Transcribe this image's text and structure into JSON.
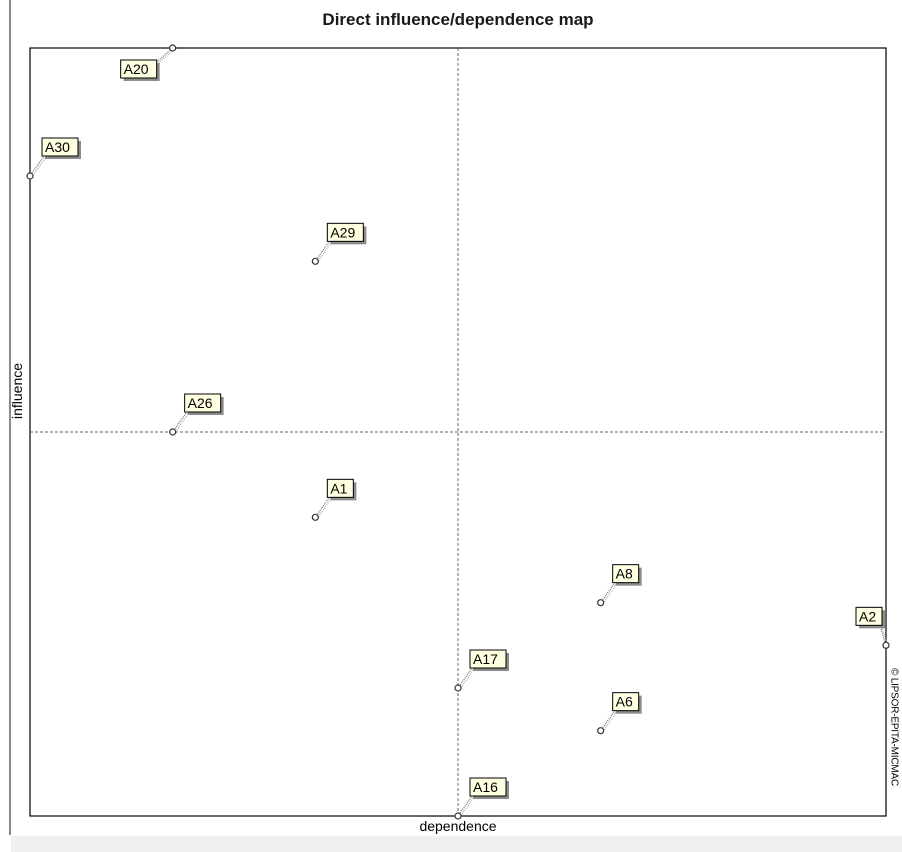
{
  "chart_data": {
    "type": "scatter",
    "title": "Direct influence/dependence map",
    "xlabel": "dependence",
    "ylabel": "influence",
    "xlim": [
      0,
      6
    ],
    "ylim": [
      0,
      9
    ],
    "x_divider": 3,
    "y_divider": 4.5,
    "grid": false,
    "points": [
      {
        "label": "A20",
        "x": 1,
        "y": 9
      },
      {
        "label": "A30",
        "x": 0,
        "y": 7.5
      },
      {
        "label": "A29",
        "x": 2,
        "y": 6.5
      },
      {
        "label": "A26",
        "x": 1,
        "y": 4.5
      },
      {
        "label": "A1",
        "x": 2,
        "y": 3.5
      },
      {
        "label": "A8",
        "x": 4,
        "y": 2.5
      },
      {
        "label": "A2",
        "x": 6,
        "y": 2
      },
      {
        "label": "A17",
        "x": 3,
        "y": 1.5
      },
      {
        "label": "A6",
        "x": 4,
        "y": 1
      },
      {
        "label": "A16",
        "x": 3,
        "y": 0
      }
    ],
    "copyright": "© LIPSOR-EPITA-MICMAC"
  }
}
